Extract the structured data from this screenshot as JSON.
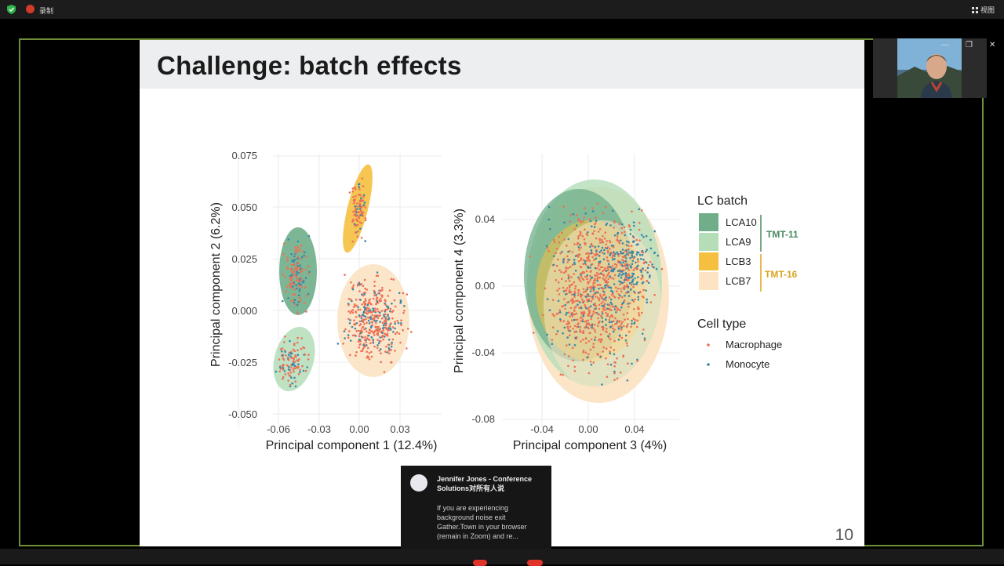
{
  "topbar": {
    "recording_label": "录制",
    "view_label": "视图"
  },
  "slide": {
    "title": "Challenge: batch effects",
    "page_number": "10"
  },
  "window_controls": {
    "minimize": "—",
    "restore": "❐",
    "close": "✕"
  },
  "legend": {
    "lc_title": "LC batch",
    "batches": [
      "LCA10",
      "LCA9",
      "LCB3",
      "LCB7"
    ],
    "batch_colors": [
      "#6fae88",
      "#b4ddb8",
      "#f5c040",
      "#fce3c4"
    ],
    "groups": [
      "TMT-11",
      "TMT-16"
    ],
    "group_colors": [
      "#4a8a62",
      "#d8a420"
    ],
    "cell_title": "Cell type",
    "cell_types": [
      "Macrophage",
      "Monocyte"
    ],
    "cell_colors": [
      "#ec7156",
      "#3a88a8"
    ]
  },
  "plot_left": {
    "xlabel": "Principal component 1 (12.4%)",
    "ylabel": "Principal component 2 (6.2%)",
    "xticks": [
      "-0.06",
      "-0.03",
      "0.00",
      "0.03"
    ],
    "yticks": [
      "0.075",
      "0.050",
      "0.025",
      "0.000",
      "-0.025",
      "-0.050"
    ]
  },
  "plot_right": {
    "xlabel": "Principal component 3 (4%)",
    "ylabel": "Principal component 4 (3.3%)",
    "xticks": [
      "-0.04",
      "0.00",
      "0.04"
    ],
    "yticks": [
      "0.04",
      "0.00",
      "-0.04",
      "-0.08"
    ]
  },
  "chat": {
    "sender": "Jennifer Jones - Conference Solutions对所有人说",
    "message": "If you are experiencing background noise exit Gather.Town in your browser (remain in Zoom) and re..."
  }
}
